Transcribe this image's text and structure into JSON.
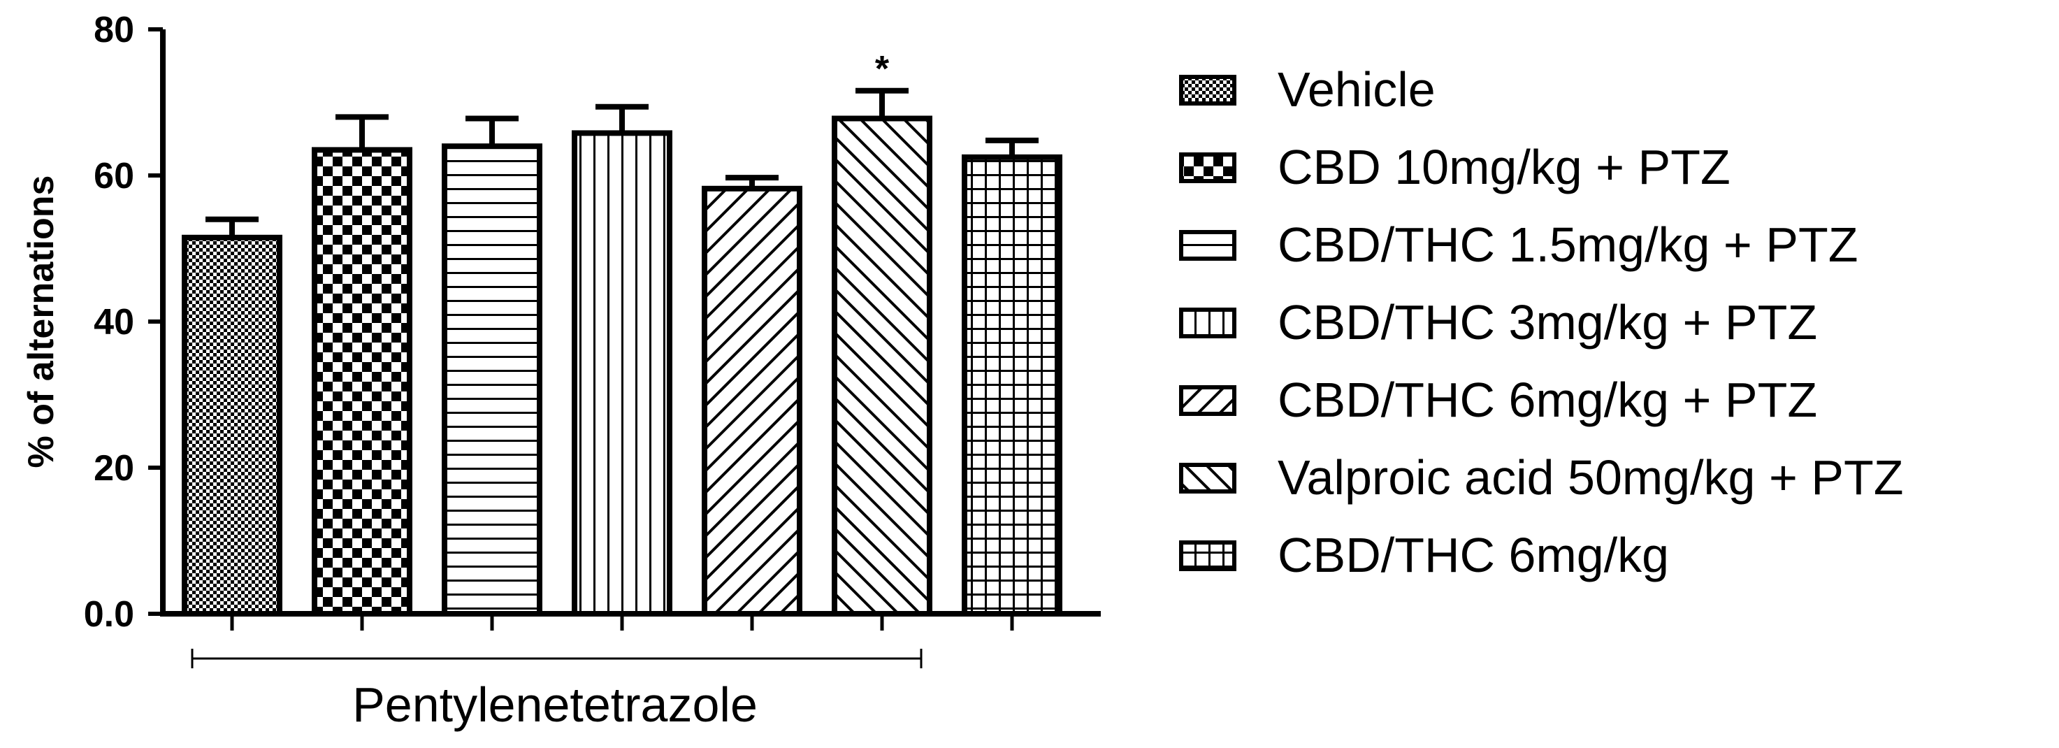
{
  "chart_data": {
    "type": "bar",
    "ylabel": "% of alternations",
    "yticks": [
      "0.0",
      "20",
      "40",
      "60",
      "80"
    ],
    "ylim": [
      0,
      80
    ],
    "group_label": "Pentylenetetrazole",
    "categories": [
      "Vehicle",
      "CBD 10mg/kg + PTZ",
      "CBD/THC 1.5mg/kg + PTZ",
      "CBD/THC 3mg/kg + PTZ",
      "CBD/THC 6mg/kg + PTZ",
      "Valproic acid 50mg/kg + PTZ",
      "CBD/THC 6mg/kg"
    ],
    "values": [
      51.5,
      63.5,
      64,
      65.8,
      58.2,
      67.8,
      62.5
    ],
    "errors": [
      2.5,
      4.5,
      3.8,
      3.6,
      1.5,
      3.8,
      2.3
    ],
    "significance": [
      "",
      "",
      "",
      "",
      "",
      "*",
      ""
    ],
    "patterns": [
      "checker-fine",
      "checker-coarse",
      "horizontal-lines",
      "vertical-lines",
      "diagonal-up",
      "diagonal-down",
      "grid"
    ],
    "legend_position": "right"
  }
}
